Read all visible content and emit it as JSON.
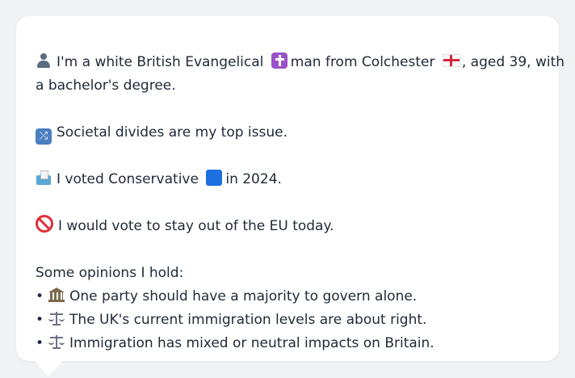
{
  "profile": {
    "intro_1": "I'm a white British Evangelical",
    "intro_2": "man from Colchester",
    "intro_3": ", aged 39, with",
    "intro_4": "a bachelor's degree.",
    "top_issue": "Societal divides are my top issue.",
    "vote_1": "I voted Conservative",
    "vote_2": "in 2024.",
    "eu": "I would vote to stay out of the EU today.",
    "opinions_heading": "Some opinions I hold:",
    "bullet": "•",
    "opinions": [
      "One party should have a majority to govern alone.",
      "The UK's current immigration levels are about right.",
      "Immigration has mixed or neutral impacts on Britain."
    ]
  },
  "icons": {
    "person": "person-icon",
    "religion": "latin-cross-icon",
    "location": "england-flag-icon",
    "issue": "shuffle-icon",
    "vote": "ballot-box-icon",
    "party": "blue-square-icon",
    "eu": "prohibited-icon",
    "opinion_1": "classical-building-icon",
    "opinion_2": "balance-scale-icon",
    "opinion_3": "balance-scale-icon"
  },
  "colors": {
    "background": "#f1f2f4",
    "card": "#ffffff",
    "text": "#1f2937",
    "party_blue": "#1e6fe0"
  }
}
